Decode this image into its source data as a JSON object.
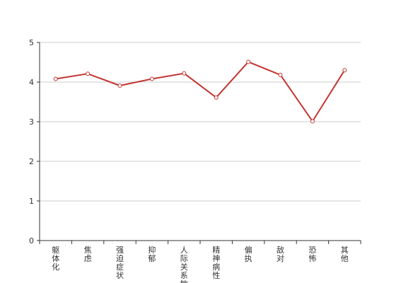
{
  "chart_data": {
    "type": "line",
    "title": "",
    "xlabel": "",
    "ylabel": "",
    "categories": [
      "躯体化",
      "焦虑",
      "强迫症状",
      "抑郁",
      "人际关系敏感",
      "精神病性",
      "偏执",
      "敌对",
      "恐怖",
      "其他"
    ],
    "series": [
      {
        "values": [
          4.08,
          4.21,
          3.91,
          4.08,
          4.22,
          3.61,
          4.51,
          4.18,
          3.01,
          4.3
        ]
      }
    ],
    "ylim": [
      0,
      5
    ],
    "yticks": [
      0,
      1,
      2,
      3,
      4,
      5
    ],
    "grid": true,
    "legend": "none",
    "colors": {
      "line": "#c23531",
      "grid": "#cccccc",
      "axis": "#333333",
      "text": "#333333"
    }
  }
}
